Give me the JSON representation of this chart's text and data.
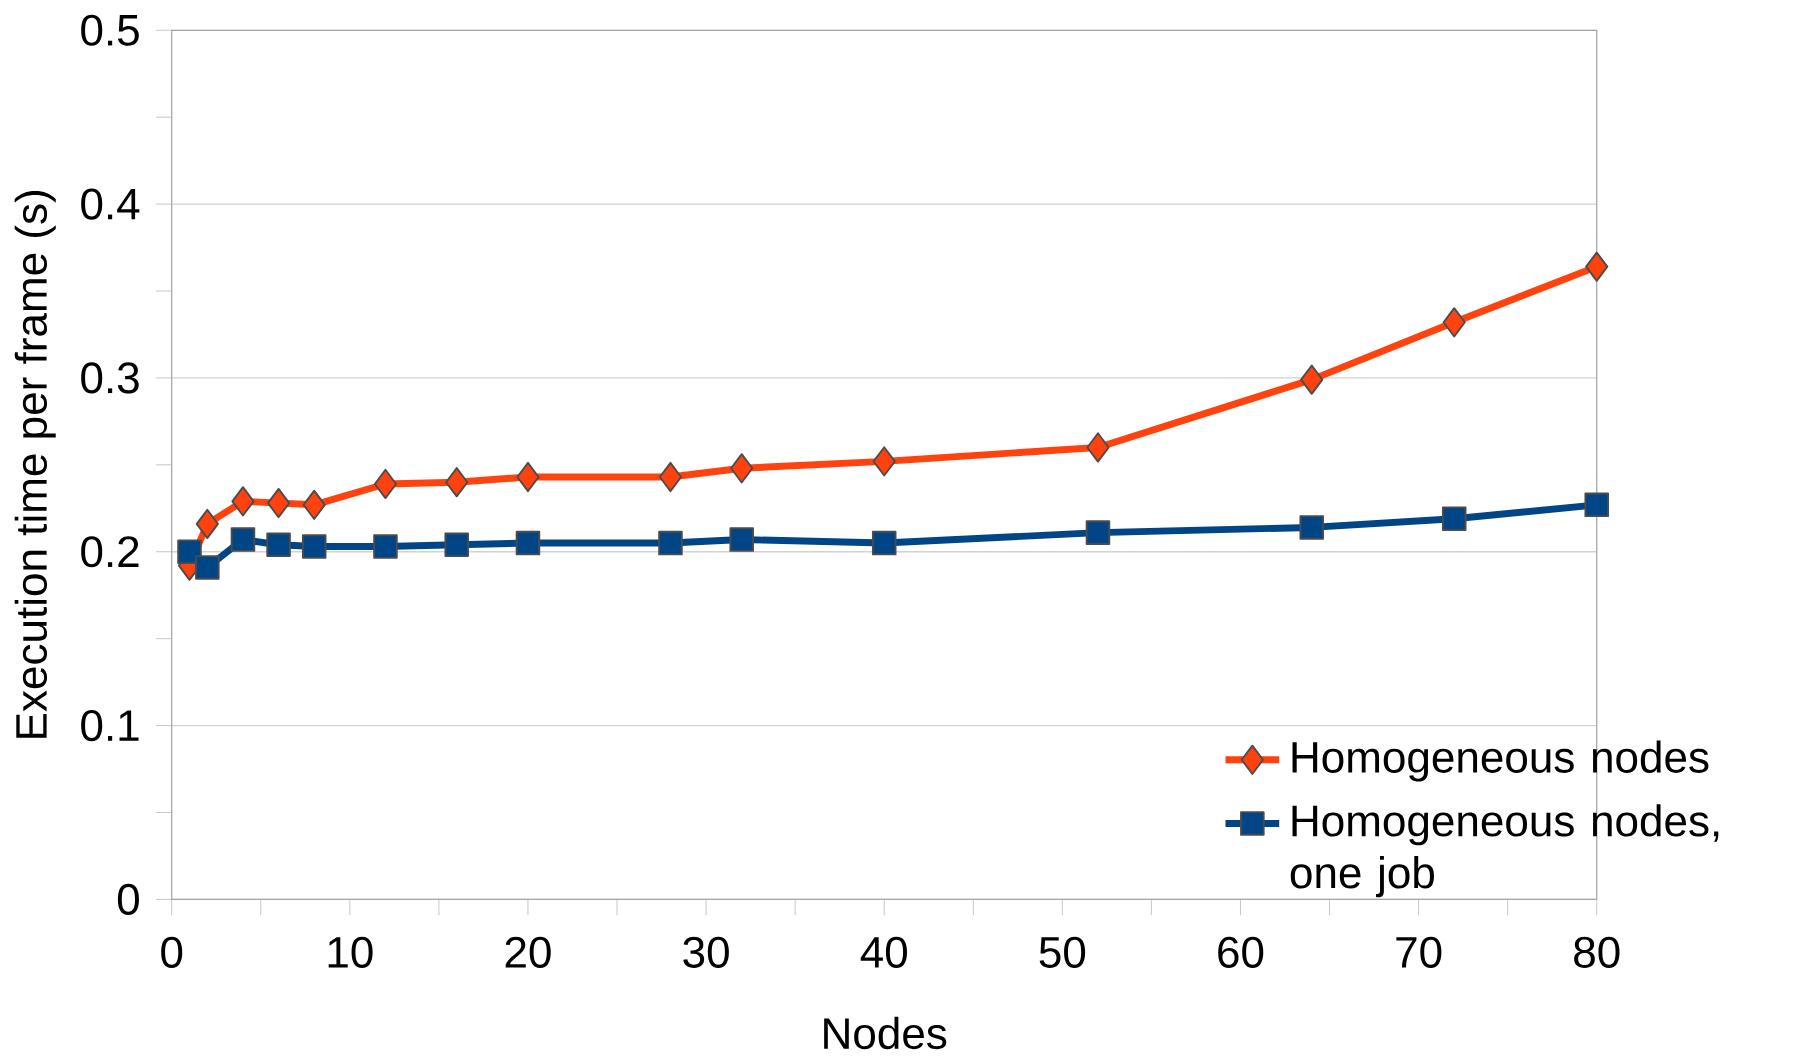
{
  "chart_data": {
    "type": "line",
    "xlabel": "Nodes",
    "ylabel": "Execution time per frame (s)",
    "xlim": [
      0,
      80
    ],
    "xticks": [
      0,
      10,
      20,
      30,
      40,
      50,
      60,
      70,
      80
    ],
    "ylim": [
      0,
      0.5
    ],
    "yticks": [
      0,
      0.1,
      0.2,
      0.3,
      0.4,
      0.5
    ],
    "grid": "y",
    "legend": "bottom right",
    "line_style": "solid",
    "x": [
      1,
      2,
      4,
      6,
      8,
      12,
      16,
      20,
      28,
      32,
      40,
      52,
      64,
      72,
      80
    ],
    "series": [
      {
        "name": "Homogeneous nodes",
        "color": "#ff420e",
        "marker": "diamond",
        "values": [
          0.192,
          0.216,
          0.229,
          0.228,
          0.227,
          0.239,
          0.24,
          0.243,
          0.243,
          0.248,
          0.252,
          0.26,
          0.299,
          0.332,
          0.364
        ]
      },
      {
        "name": "Homogeneous nodes, one job",
        "color": "#004586",
        "marker": "square",
        "values": [
          0.2,
          0.191,
          0.207,
          0.204,
          0.203,
          0.203,
          0.204,
          0.205,
          0.205,
          0.207,
          0.205,
          0.211,
          0.214,
          0.219,
          0.227
        ]
      }
    ]
  }
}
